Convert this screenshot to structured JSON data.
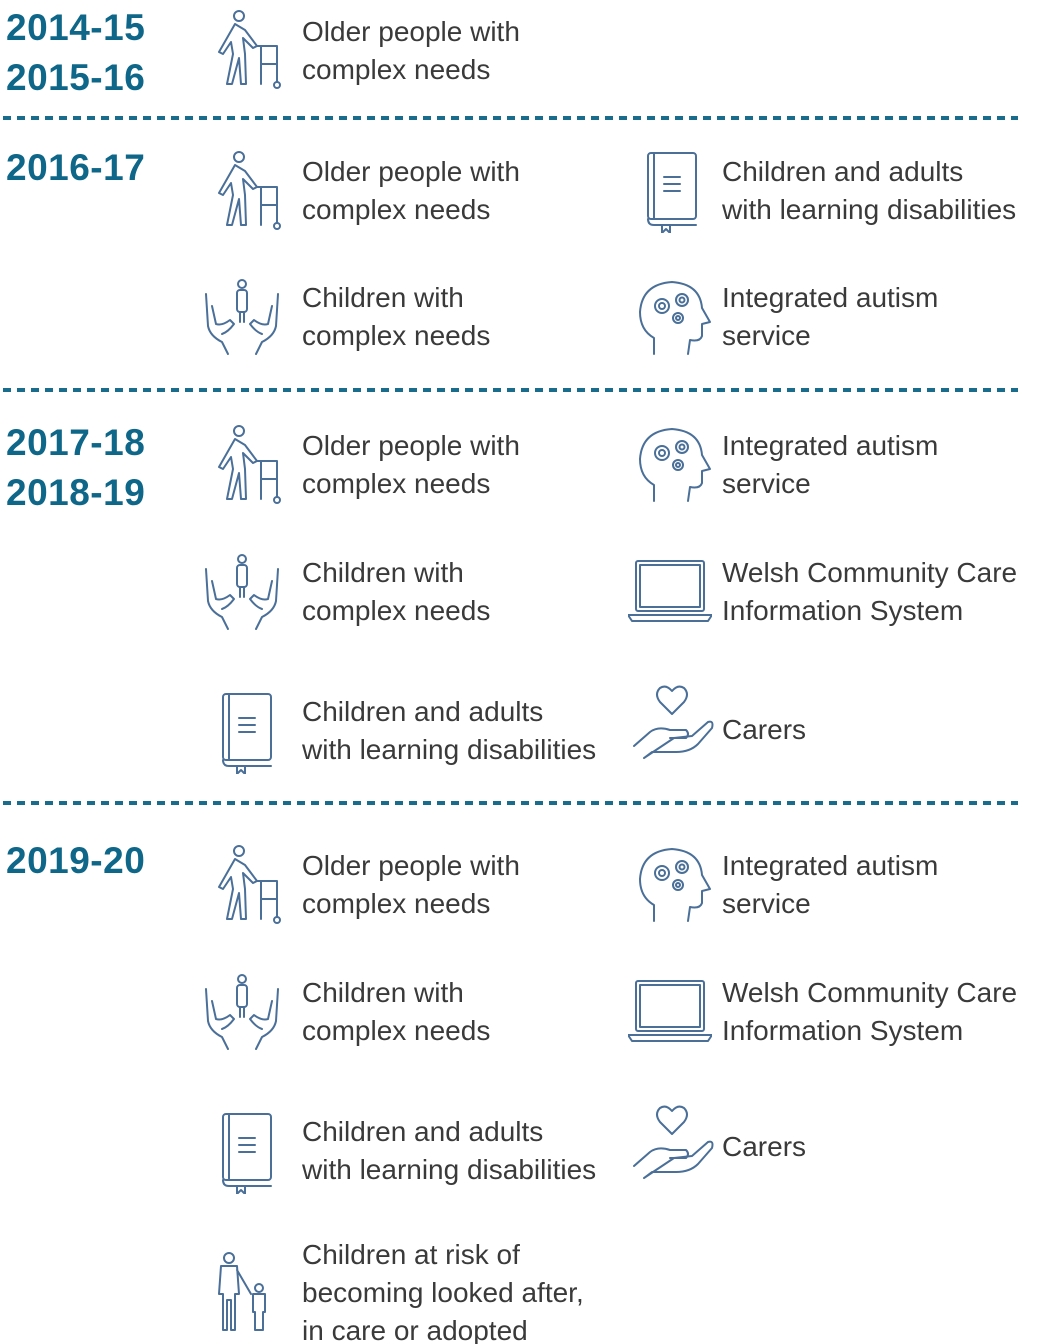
{
  "sections": [
    {
      "years": [
        "2014-15",
        "2015-16"
      ],
      "items": [
        [
          "Older people with",
          "complex needs"
        ]
      ]
    },
    {
      "years": [
        "2016-17"
      ],
      "items": [
        [
          "Older people with",
          "complex needs"
        ],
        [
          "Children and adults",
          "with learning disabilities"
        ],
        [
          "Children with",
          "complex needs"
        ],
        [
          "Integrated autism",
          "service"
        ]
      ]
    },
    {
      "years": [
        "2017-18",
        "2018-19"
      ],
      "items": [
        [
          "Older people with",
          "complex needs"
        ],
        [
          "Integrated autism",
          "service"
        ],
        [
          "Children with",
          "complex needs"
        ],
        [
          "Welsh Community Care",
          "Information System"
        ],
        [
          "Children and adults",
          "with learning disabilities"
        ],
        [
          "Carers"
        ]
      ]
    },
    {
      "years": [
        "2019-20"
      ],
      "items": [
        [
          "Older people with",
          "complex needs"
        ],
        [
          "Integrated autism",
          "service"
        ],
        [
          "Children with",
          "complex needs"
        ],
        [
          "Welsh Community Care",
          "Information System"
        ],
        [
          "Children and adults",
          "with learning disabilities"
        ],
        [
          "Carers"
        ],
        [
          "Children at risk of",
          "becoming looked after,",
          "in care or adopted"
        ]
      ]
    }
  ]
}
